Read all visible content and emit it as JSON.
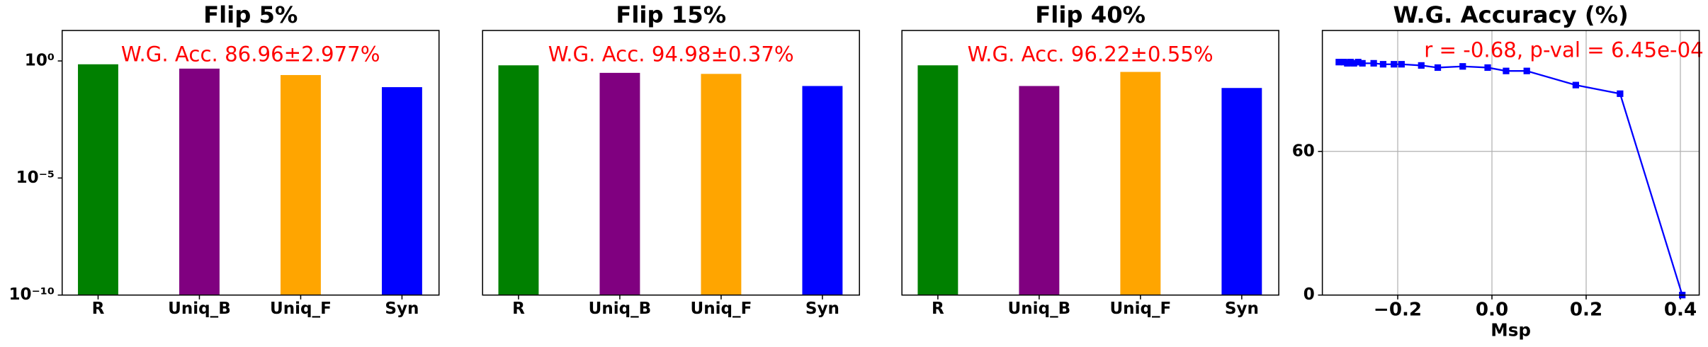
{
  "chart_data": [
    {
      "type": "bar",
      "title": "Flip 5%",
      "log_scale": true,
      "categories": [
        "R",
        "Uniq_B",
        "Uniq_F",
        "Syn"
      ],
      "values": [
        0.72,
        0.47,
        0.25,
        0.076
      ],
      "colors": [
        "#008000",
        "#800080",
        "#ffa500",
        "#0000ff"
      ],
      "ylim": [
        1e-10,
        20
      ],
      "yticks": [
        {
          "value": 1,
          "label": "10⁰"
        },
        {
          "value": 1e-05,
          "label": "10⁻⁵"
        },
        {
          "value": 1e-10,
          "label": "10⁻¹⁰"
        }
      ],
      "annotation": "W.G. Acc. 86.96±2.977%"
    },
    {
      "type": "bar",
      "title": "Flip 15%",
      "log_scale": true,
      "categories": [
        "R",
        "Uniq_B",
        "Uniq_F",
        "Syn"
      ],
      "values": [
        0.65,
        0.31,
        0.28,
        0.085
      ],
      "colors": [
        "#008000",
        "#800080",
        "#ffa500",
        "#0000ff"
      ],
      "ylim": [
        1e-10,
        20
      ],
      "annotation": "W.G. Acc. 94.98±0.37%"
    },
    {
      "type": "bar",
      "title": "Flip 40%",
      "log_scale": true,
      "categories": [
        "R",
        "Uniq_B",
        "Uniq_F",
        "Syn"
      ],
      "values": [
        0.65,
        0.085,
        0.34,
        0.07
      ],
      "colors": [
        "#008000",
        "#800080",
        "#ffa500",
        "#0000ff"
      ],
      "ylim": [
        1e-10,
        20
      ],
      "annotation": "W.G. Acc. 96.22±0.55%"
    },
    {
      "type": "line",
      "title": "W.G. Accuracy (%)",
      "x_label": "Msp",
      "color": "#0000ff",
      "grid": true,
      "x": [
        -0.325,
        -0.314,
        -0.307,
        -0.3,
        -0.293,
        -0.284,
        -0.275,
        -0.251,
        -0.231,
        -0.208,
        -0.192,
        -0.15,
        -0.115,
        -0.062,
        -0.009,
        0.03,
        0.074,
        0.178,
        0.272,
        0.404
      ],
      "values": [
        97.3,
        97.3,
        96.8,
        97.3,
        96.8,
        97.3,
        96.8,
        96.8,
        96.4,
        96.4,
        96.4,
        95.9,
        95.0,
        95.5,
        95.0,
        93.6,
        93.6,
        87.7,
        84.1,
        0
      ],
      "xlim": [
        -0.36,
        0.44
      ],
      "ylim": [
        0,
        110.5
      ],
      "xticks": [
        {
          "value": -0.2,
          "label": "−0.2"
        },
        {
          "value": 0,
          "label": "0.0"
        },
        {
          "value": 0.2,
          "label": "0.2"
        },
        {
          "value": 0.4,
          "label": "0.4"
        }
      ],
      "yticks": [
        0,
        60
      ],
      "annotation": "r = -0.68, p-val = 6.45e-04"
    }
  ]
}
